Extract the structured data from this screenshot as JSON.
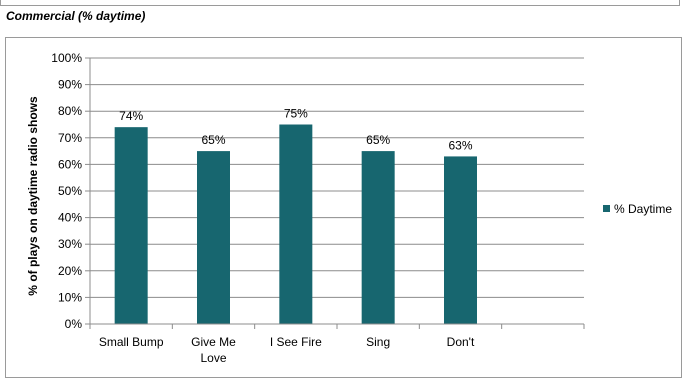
{
  "heading": "Commercial (% daytime)",
  "chart_data": {
    "type": "bar",
    "categories": [
      [
        "Small Bump"
      ],
      [
        "Give Me",
        "Love"
      ],
      [
        "I See Fire"
      ],
      [
        "Sing"
      ],
      [
        "Don't"
      ],
      [
        ""
      ]
    ],
    "series": [
      {
        "name": "% Daytime",
        "values": [
          74,
          65,
          75,
          65,
          63,
          null
        ],
        "color": "#17666f"
      }
    ],
    "data_labels": [
      "74%",
      "65%",
      "75%",
      "65%",
      "63%",
      ""
    ],
    "xlabel": "",
    "ylabel": "% of plays on daytime radio shows",
    "ylim": [
      0,
      100
    ],
    "yticks": [
      "0%",
      "10%",
      "20%",
      "30%",
      "40%",
      "50%",
      "60%",
      "70%",
      "80%",
      "90%",
      "100%"
    ],
    "grid": true,
    "legend_position": "right"
  }
}
